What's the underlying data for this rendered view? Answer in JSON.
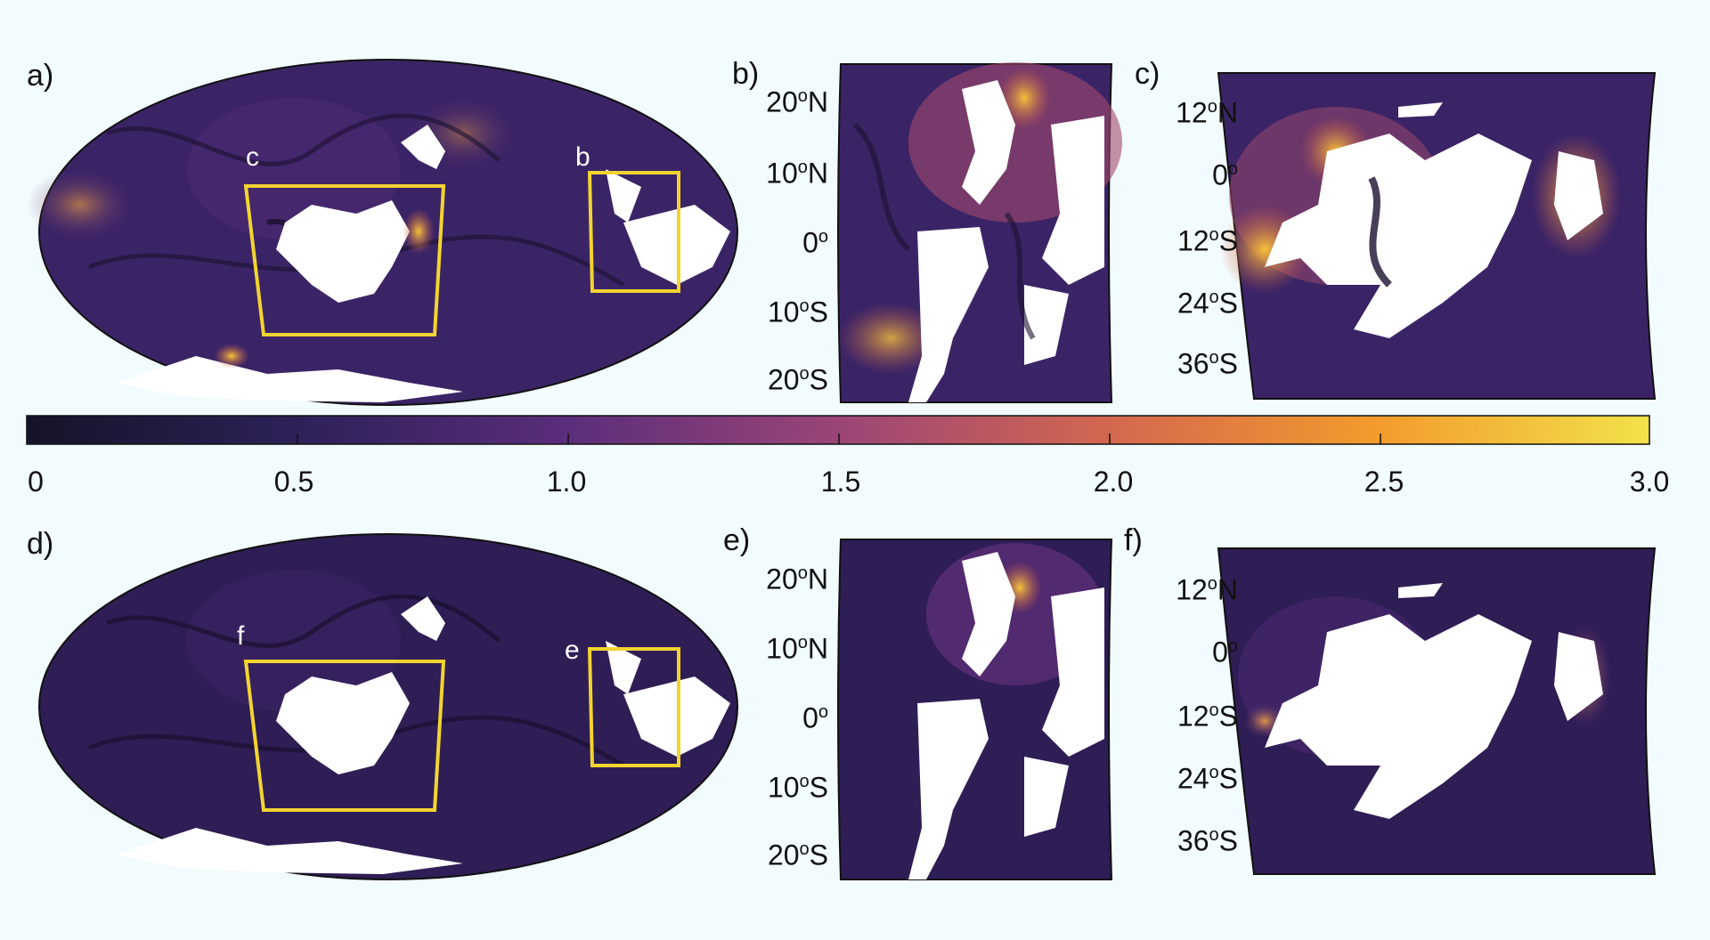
{
  "panels": {
    "a": "a)",
    "b": "b)",
    "c": "c)",
    "d": "d)",
    "e": "e)",
    "f": "f)"
  },
  "box_labels": {
    "top_c": "c",
    "top_b": "b",
    "bottom_f": "f",
    "bottom_e": "e"
  },
  "ticks_b": {
    "lat1": [
      "20",
      "N"
    ],
    "lat2": [
      "10",
      "N"
    ],
    "lat3": [
      "0",
      ""
    ],
    "lat4": [
      "10",
      "S"
    ],
    "lat5": [
      "20",
      "S"
    ]
  },
  "ticks_c": {
    "lat1": [
      "12",
      "N"
    ],
    "lat2": [
      "0",
      ""
    ],
    "lat3": [
      "12",
      "S"
    ],
    "lat4": [
      "24",
      "S"
    ],
    "lat5": [
      "36",
      "S"
    ]
  },
  "degree_symbol": "o",
  "colorbar": {
    "labels": [
      "0",
      "0.5",
      "1.0",
      "1.5",
      "2.0",
      "2.5",
      "3.0"
    ],
    "range": [
      0,
      3.0
    ]
  },
  "colors": {
    "dark": "#2a1a45",
    "mid": "#5a2d7a",
    "warm": "#d56a4e",
    "hot": "#f5c53a",
    "box": "#f2d431",
    "land": "#ffffff"
  }
}
